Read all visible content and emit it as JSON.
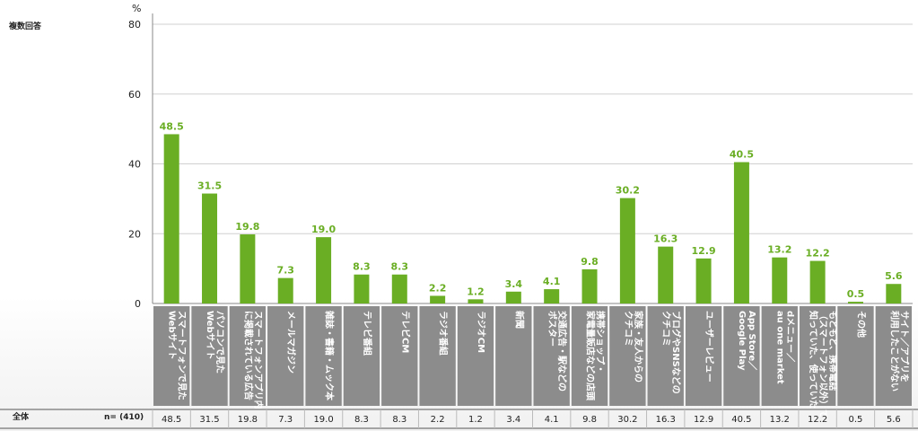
{
  "chart_data": {
    "type": "bar",
    "title": "",
    "note": "複数回答",
    "unit": "%",
    "ylim": [
      0,
      80
    ],
    "yticks": [
      0,
      20,
      40,
      60,
      80
    ],
    "grid": true,
    "bar_color": "#6aae24",
    "label_color": "#6aae24",
    "category_bg": "#8c8c8c",
    "categories": [
      [
        "スマートフォンで見た",
        "Webサイト"
      ],
      [
        "パソコンで見た",
        "Webサイト"
      ],
      [
        "スマートフォンアプリ内",
        "に掲載されている広告"
      ],
      [
        "メールマガジン"
      ],
      [
        "雑誌・書籍・ムック本"
      ],
      [
        "テレビ番組"
      ],
      [
        "テレビCM"
      ],
      [
        "ラジオ番組"
      ],
      [
        "ラジオCM"
      ],
      [
        "新聞"
      ],
      [
        "交通広告・駅などの",
        "ポスター"
      ],
      [
        "携帯ショップ・",
        "家電量販店などの店頭"
      ],
      [
        "家族・友人からの",
        "クチコミ"
      ],
      [
        "ブログやSNSなどの",
        "クチコミ"
      ],
      [
        "ユーザーレビュー"
      ],
      [
        "App Store／",
        "Google Play"
      ],
      [
        "dメニュー／",
        "au one market"
      ],
      [
        "もともと、携帯電話",
        "（スマートフォン以外）で",
        "知っていた、使っていた"
      ],
      [
        "その他"
      ],
      [
        "サイト／アプリを",
        "利用したことがない"
      ]
    ],
    "values": [
      48.5,
      31.5,
      19.8,
      7.3,
      19.0,
      8.3,
      8.3,
      2.2,
      1.2,
      3.4,
      4.1,
      9.8,
      30.2,
      16.3,
      12.9,
      40.5,
      13.2,
      12.2,
      0.5,
      5.6
    ],
    "value_labels": [
      "48.5",
      "31.5",
      "19.8",
      "7.3",
      "19.0",
      "8.3",
      "8.3",
      "2.2",
      "1.2",
      "3.4",
      "4.1",
      "9.8",
      "30.2",
      "16.3",
      "12.9",
      "40.5",
      "13.2",
      "12.2",
      "0.5",
      "5.6"
    ]
  },
  "table": {
    "row_label": "全体",
    "n_label": "n= (410)",
    "values": [
      "48.5",
      "31.5",
      "19.8",
      "7.3",
      "19.0",
      "8.3",
      "8.3",
      "2.2",
      "1.2",
      "3.4",
      "4.1",
      "9.8",
      "30.2",
      "16.3",
      "12.9",
      "40.5",
      "13.2",
      "12.2",
      "0.5",
      "5.6"
    ]
  }
}
